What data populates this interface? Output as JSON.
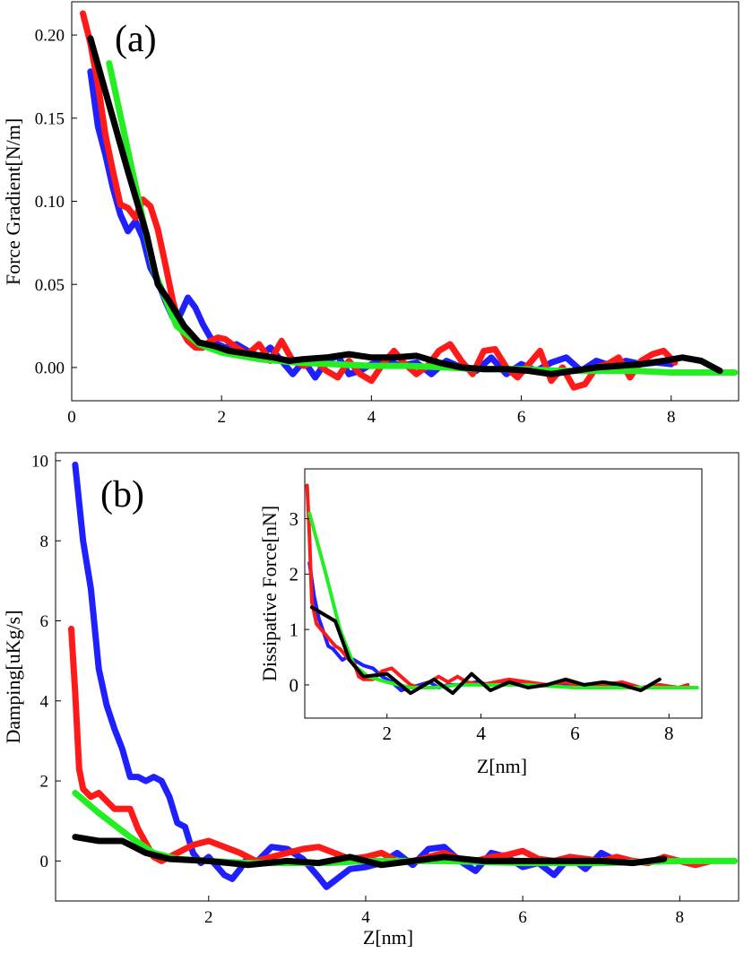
{
  "colors": {
    "blue": "#1f1fff",
    "red": "#ff1a1a",
    "green": "#22ee22",
    "black": "#000000"
  },
  "chart_data": [
    {
      "id": "a",
      "type": "line",
      "panel_label": "(a)",
      "title": "",
      "xlabel": "",
      "ylabel": "Force Gradient[N/m]",
      "xlim": [
        0,
        8.9
      ],
      "ylim": [
        -0.02,
        0.22
      ],
      "xticks": [
        0,
        2,
        4,
        6,
        8
      ],
      "xtick_labels": [
        "0",
        "2",
        "4",
        "6",
        "8"
      ],
      "yticks": [
        0,
        0.05,
        0.1,
        0.15,
        0.2
      ],
      "ytick_labels": [
        "0.00",
        "0.05",
        "0.10",
        "0.15",
        "0.20"
      ],
      "series": [
        {
          "name": "blue",
          "color": "#1f1fff",
          "x": [
            0.25,
            0.35,
            0.45,
            0.55,
            0.65,
            0.75,
            0.85,
            0.95,
            1.05,
            1.15,
            1.25,
            1.35,
            1.45,
            1.55,
            1.65,
            1.75,
            1.85,
            1.95,
            2.05,
            2.2,
            2.35,
            2.5,
            2.65,
            2.8,
            2.95,
            3.1,
            3.25,
            3.4,
            3.55,
            3.7,
            3.85,
            4.0,
            4.2,
            4.4,
            4.6,
            4.8,
            5.0,
            5.2,
            5.4,
            5.6,
            5.8,
            6.0,
            6.2,
            6.4,
            6.6,
            6.8,
            7.0,
            7.2,
            7.4,
            7.6,
            7.8,
            8.0
          ],
          "y": [
            0.178,
            0.145,
            0.128,
            0.108,
            0.092,
            0.082,
            0.088,
            0.078,
            0.06,
            0.052,
            0.04,
            0.03,
            0.032,
            0.042,
            0.036,
            0.026,
            0.018,
            0.014,
            0.012,
            0.014,
            0.01,
            0.006,
            0.012,
            0.004,
            -0.004,
            0.004,
            -0.006,
            0.004,
            0.007,
            -0.004,
            -0.002,
            0.002,
            0.004,
            0.001,
            0.003,
            -0.004,
            0.004,
            0.0,
            -0.002,
            0.006,
            -0.004,
            0.002,
            -0.002,
            0.003,
            0.006,
            -0.002,
            0.004,
            0.001,
            0.004,
            0.002,
            0.003,
            0.002
          ]
        },
        {
          "name": "red",
          "color": "#ff1a1a",
          "x": [
            0.15,
            0.25,
            0.35,
            0.45,
            0.55,
            0.65,
            0.75,
            0.85,
            0.95,
            1.05,
            1.15,
            1.25,
            1.35,
            1.45,
            1.55,
            1.65,
            1.75,
            1.85,
            1.95,
            2.05,
            2.2,
            2.35,
            2.5,
            2.65,
            2.8,
            2.95,
            3.1,
            3.25,
            3.4,
            3.55,
            3.7,
            3.85,
            4.0,
            4.15,
            4.3,
            4.45,
            4.6,
            4.75,
            4.9,
            5.05,
            5.2,
            5.35,
            5.5,
            5.65,
            5.8,
            5.95,
            6.1,
            6.25,
            6.4,
            6.55,
            6.7,
            6.85,
            7.0,
            7.15,
            7.3,
            7.45,
            7.6,
            7.75,
            7.9,
            8.05
          ],
          "y": [
            0.213,
            0.195,
            0.17,
            0.14,
            0.118,
            0.098,
            0.096,
            0.09,
            0.101,
            0.097,
            0.083,
            0.062,
            0.04,
            0.024,
            0.016,
            0.012,
            0.012,
            0.016,
            0.018,
            0.017,
            0.012,
            0.008,
            0.014,
            0.004,
            0.016,
            0.004,
            0.001,
            0.004,
            -0.002,
            -0.006,
            0.004,
            -0.004,
            -0.008,
            0.002,
            0.01,
            0.002,
            -0.004,
            0.001,
            0.01,
            0.014,
            0.004,
            -0.004,
            0.01,
            0.011,
            0.0,
            -0.006,
            0.002,
            0.01,
            -0.008,
            0.0,
            -0.012,
            -0.01,
            0.0,
            0.002,
            0.006,
            -0.006,
            0.004,
            0.008,
            0.01,
            0.003
          ]
        },
        {
          "name": "green",
          "color": "#22ee22",
          "x": [
            0.5,
            0.8,
            1.1,
            1.4,
            1.7,
            2.0,
            2.5,
            3.0,
            3.5,
            4.0,
            4.5,
            5.0,
            5.5,
            6.0,
            6.5,
            7.0,
            7.5,
            8.0,
            8.5,
            8.85
          ],
          "y": [
            0.183,
            0.12,
            0.058,
            0.025,
            0.014,
            0.009,
            0.005,
            0.003,
            0.002,
            0.001,
            0.001,
            0.0,
            -0.001,
            -0.001,
            -0.002,
            -0.002,
            -0.002,
            -0.003,
            -0.003,
            -0.003
          ]
        },
        {
          "name": "black",
          "color": "#000000",
          "x": [
            0.25,
            0.5,
            0.75,
            1.0,
            1.15,
            1.3,
            1.5,
            1.7,
            1.9,
            2.1,
            2.4,
            2.7,
            2.9,
            3.1,
            3.4,
            3.7,
            4.0,
            4.3,
            4.6,
            4.9,
            5.2,
            5.5,
            5.8,
            6.1,
            6.4,
            6.7,
            7.0,
            7.3,
            7.6,
            7.9,
            8.15,
            8.4,
            8.65
          ],
          "y": [
            0.198,
            0.158,
            0.118,
            0.08,
            0.05,
            0.04,
            0.025,
            0.015,
            0.013,
            0.01,
            0.008,
            0.006,
            0.004,
            0.005,
            0.006,
            0.008,
            0.006,
            0.006,
            0.007,
            0.003,
            0.0,
            -0.001,
            -0.001,
            -0.002,
            -0.004,
            -0.002,
            0.0,
            0.001,
            0.002,
            0.004,
            0.006,
            0.004,
            -0.002
          ]
        }
      ]
    },
    {
      "id": "b",
      "type": "line",
      "panel_label": "(b)",
      "title": "",
      "xlabel": "Z[nm]",
      "ylabel": "Damping[uKg/s]",
      "xlim": [
        0.05,
        8.75
      ],
      "ylim": [
        -1.0,
        10.2
      ],
      "xticks": [
        2,
        4,
        6,
        8
      ],
      "xtick_labels": [
        "2",
        "4",
        "6",
        "8"
      ],
      "yticks": [
        0,
        2,
        4,
        6,
        8,
        10
      ],
      "ytick_labels": [
        "0",
        "2",
        "4",
        "6",
        "8",
        "10"
      ],
      "series": [
        {
          "name": "blue",
          "color": "#1f1fff",
          "x": [
            0.3,
            0.4,
            0.5,
            0.6,
            0.7,
            0.8,
            0.9,
            1.0,
            1.1,
            1.2,
            1.3,
            1.4,
            1.5,
            1.6,
            1.7,
            1.8,
            1.9,
            2.0,
            2.2,
            2.3,
            2.4,
            2.5,
            2.6,
            2.8,
            3.0,
            3.2,
            3.4,
            3.5,
            3.6,
            3.8,
            4.0,
            4.2,
            4.4,
            4.6,
            4.8,
            5.0,
            5.2,
            5.4,
            5.6,
            5.8,
            6.0,
            6.2,
            6.4,
            6.6,
            6.8,
            7.0,
            7.2
          ],
          "y": [
            9.9,
            8.0,
            6.8,
            4.8,
            3.9,
            3.3,
            2.8,
            2.1,
            2.1,
            2.0,
            2.1,
            2.0,
            1.6,
            0.95,
            0.85,
            0.2,
            -0.05,
            0.1,
            -0.35,
            -0.45,
            -0.2,
            0.1,
            -0.05,
            0.35,
            0.3,
            0.05,
            -0.4,
            -0.65,
            -0.5,
            -0.2,
            -0.15,
            -0.05,
            0.2,
            -0.1,
            0.3,
            0.35,
            0.0,
            -0.25,
            0.2,
            0.1,
            -0.15,
            -0.05,
            -0.35,
            0.1,
            -0.2,
            0.2,
            0.0
          ]
        },
        {
          "name": "red",
          "color": "#ff1a1a",
          "x": [
            0.25,
            0.3,
            0.35,
            0.4,
            0.5,
            0.6,
            0.7,
            0.8,
            0.9,
            1.0,
            1.1,
            1.2,
            1.3,
            1.4,
            1.6,
            1.8,
            2.0,
            2.2,
            2.4,
            2.6,
            2.8,
            3.0,
            3.2,
            3.4,
            3.6,
            3.8,
            4.0,
            4.2,
            4.4,
            4.6,
            4.8,
            5.0,
            5.2,
            5.4,
            5.6,
            5.8,
            6.0,
            6.2,
            6.4,
            6.6,
            6.8,
            7.0,
            7.2,
            7.4,
            7.6,
            7.8,
            8.0,
            8.2,
            8.4
          ],
          "y": [
            5.8,
            4.2,
            2.3,
            1.8,
            1.6,
            1.7,
            1.5,
            1.3,
            1.3,
            1.3,
            0.8,
            0.45,
            0.1,
            0.0,
            0.2,
            0.4,
            0.5,
            0.35,
            0.2,
            0.0,
            0.1,
            0.2,
            0.3,
            0.35,
            0.2,
            0.05,
            0.1,
            0.2,
            0.0,
            0.0,
            0.1,
            0.2,
            0.05,
            0.0,
            0.1,
            0.15,
            0.25,
            0.05,
            0.0,
            0.1,
            0.05,
            0.0,
            0.1,
            0.0,
            -0.05,
            0.1,
            0.0,
            -0.1,
            0.0
          ]
        },
        {
          "name": "green",
          "color": "#22ee22",
          "x": [
            0.3,
            0.6,
            1.0,
            1.3,
            1.6,
            2.0,
            2.5,
            3.0,
            3.5,
            4.0,
            5.0,
            6.0,
            7.0,
            8.0,
            8.7
          ],
          "y": [
            1.7,
            1.2,
            0.6,
            0.2,
            0.05,
            0.0,
            -0.05,
            -0.05,
            -0.05,
            0.0,
            0.0,
            -0.05,
            -0.05,
            0.0,
            0.0
          ]
        },
        {
          "name": "black",
          "color": "#000000",
          "x": [
            0.3,
            0.6,
            0.9,
            1.2,
            1.5,
            2.0,
            2.5,
            3.0,
            3.4,
            3.8,
            4.2,
            4.6,
            5.0,
            5.5,
            6.0,
            6.5,
            7.0,
            7.4,
            7.8
          ],
          "y": [
            0.6,
            0.5,
            0.5,
            0.2,
            0.05,
            0.0,
            -0.1,
            0.0,
            -0.05,
            0.1,
            -0.1,
            0.0,
            0.1,
            0.0,
            0.0,
            0.0,
            0.0,
            -0.05,
            0.05
          ]
        }
      ]
    },
    {
      "id": "inset",
      "type": "line",
      "title": "",
      "xlabel": "Z[nm]",
      "ylabel": "Dissipative Force[nN]",
      "xlim": [
        0.25,
        8.7
      ],
      "ylim": [
        -0.6,
        3.9
      ],
      "xticks": [
        2,
        4,
        6,
        8
      ],
      "xtick_labels": [
        "2",
        "4",
        "6",
        "8"
      ],
      "yticks": [
        0,
        1,
        2,
        3
      ],
      "ytick_labels": [
        "0",
        "1",
        "2",
        "3"
      ],
      "series": [
        {
          "name": "blue",
          "color": "#1f1fff",
          "x": [
            0.35,
            0.45,
            0.55,
            0.65,
            0.75,
            0.85,
            0.95,
            1.05,
            1.15,
            1.3,
            1.5,
            1.7,
            1.9,
            2.1,
            2.3,
            2.5,
            2.7,
            2.9,
            3.1,
            3.3,
            3.6,
            3.9,
            4.2,
            4.6,
            5.0,
            5.4,
            5.8,
            6.2,
            6.6,
            7.0
          ],
          "y": [
            2.2,
            1.6,
            1.2,
            0.95,
            0.7,
            0.65,
            0.55,
            0.45,
            0.5,
            0.45,
            0.35,
            0.3,
            0.15,
            0.05,
            -0.1,
            -0.05,
            0.0,
            0.05,
            -0.05,
            0.0,
            0.0,
            0.05,
            0.0,
            0.05,
            0.0,
            0.0,
            0.0,
            0.0,
            0.0,
            0.0
          ]
        },
        {
          "name": "red",
          "color": "#ff1a1a",
          "x": [
            0.3,
            0.35,
            0.4,
            0.5,
            0.6,
            0.7,
            0.8,
            0.9,
            1.0,
            1.1,
            1.2,
            1.3,
            1.4,
            1.5,
            1.7,
            1.9,
            2.1,
            2.3,
            2.5,
            2.7,
            2.9,
            3.1,
            3.3,
            3.5,
            3.7,
            4.0,
            4.3,
            4.6,
            5.0,
            5.4,
            5.8,
            6.2,
            6.6,
            7.0,
            7.4,
            7.8,
            8.2,
            8.4
          ],
          "y": [
            3.6,
            2.7,
            1.5,
            1.1,
            1.0,
            0.9,
            0.8,
            0.7,
            0.65,
            0.55,
            0.45,
            0.4,
            0.15,
            0.1,
            0.1,
            0.25,
            0.3,
            0.15,
            0.0,
            -0.05,
            0.05,
            0.15,
            0.05,
            0.15,
            0.05,
            0.0,
            0.05,
            0.1,
            0.05,
            0.0,
            0.05,
            -0.05,
            0.0,
            0.05,
            -0.05,
            0.0,
            -0.05,
            0.0
          ]
        },
        {
          "name": "green",
          "color": "#22ee22",
          "x": [
            0.35,
            0.7,
            1.0,
            1.3,
            1.6,
            2.0,
            2.5,
            3.0,
            3.5,
            4.0,
            5.0,
            6.0,
            7.0,
            8.0,
            8.6
          ],
          "y": [
            3.1,
            2.0,
            1.0,
            0.35,
            0.15,
            0.05,
            -0.05,
            -0.05,
            0.0,
            0.0,
            0.0,
            -0.05,
            -0.05,
            -0.05,
            -0.05
          ]
        },
        {
          "name": "black",
          "color": "#000000",
          "x": [
            0.4,
            0.9,
            1.2,
            1.5,
            2.0,
            2.5,
            3.0,
            3.4,
            3.8,
            4.2,
            4.6,
            5.0,
            5.4,
            5.8,
            6.2,
            6.6,
            7.0,
            7.4,
            7.8
          ],
          "y": [
            1.4,
            1.15,
            0.45,
            0.15,
            0.2,
            -0.15,
            0.1,
            -0.15,
            0.2,
            -0.1,
            0.05,
            -0.05,
            0.0,
            0.1,
            0.0,
            0.05,
            0.0,
            -0.1,
            0.1
          ]
        }
      ]
    }
  ]
}
